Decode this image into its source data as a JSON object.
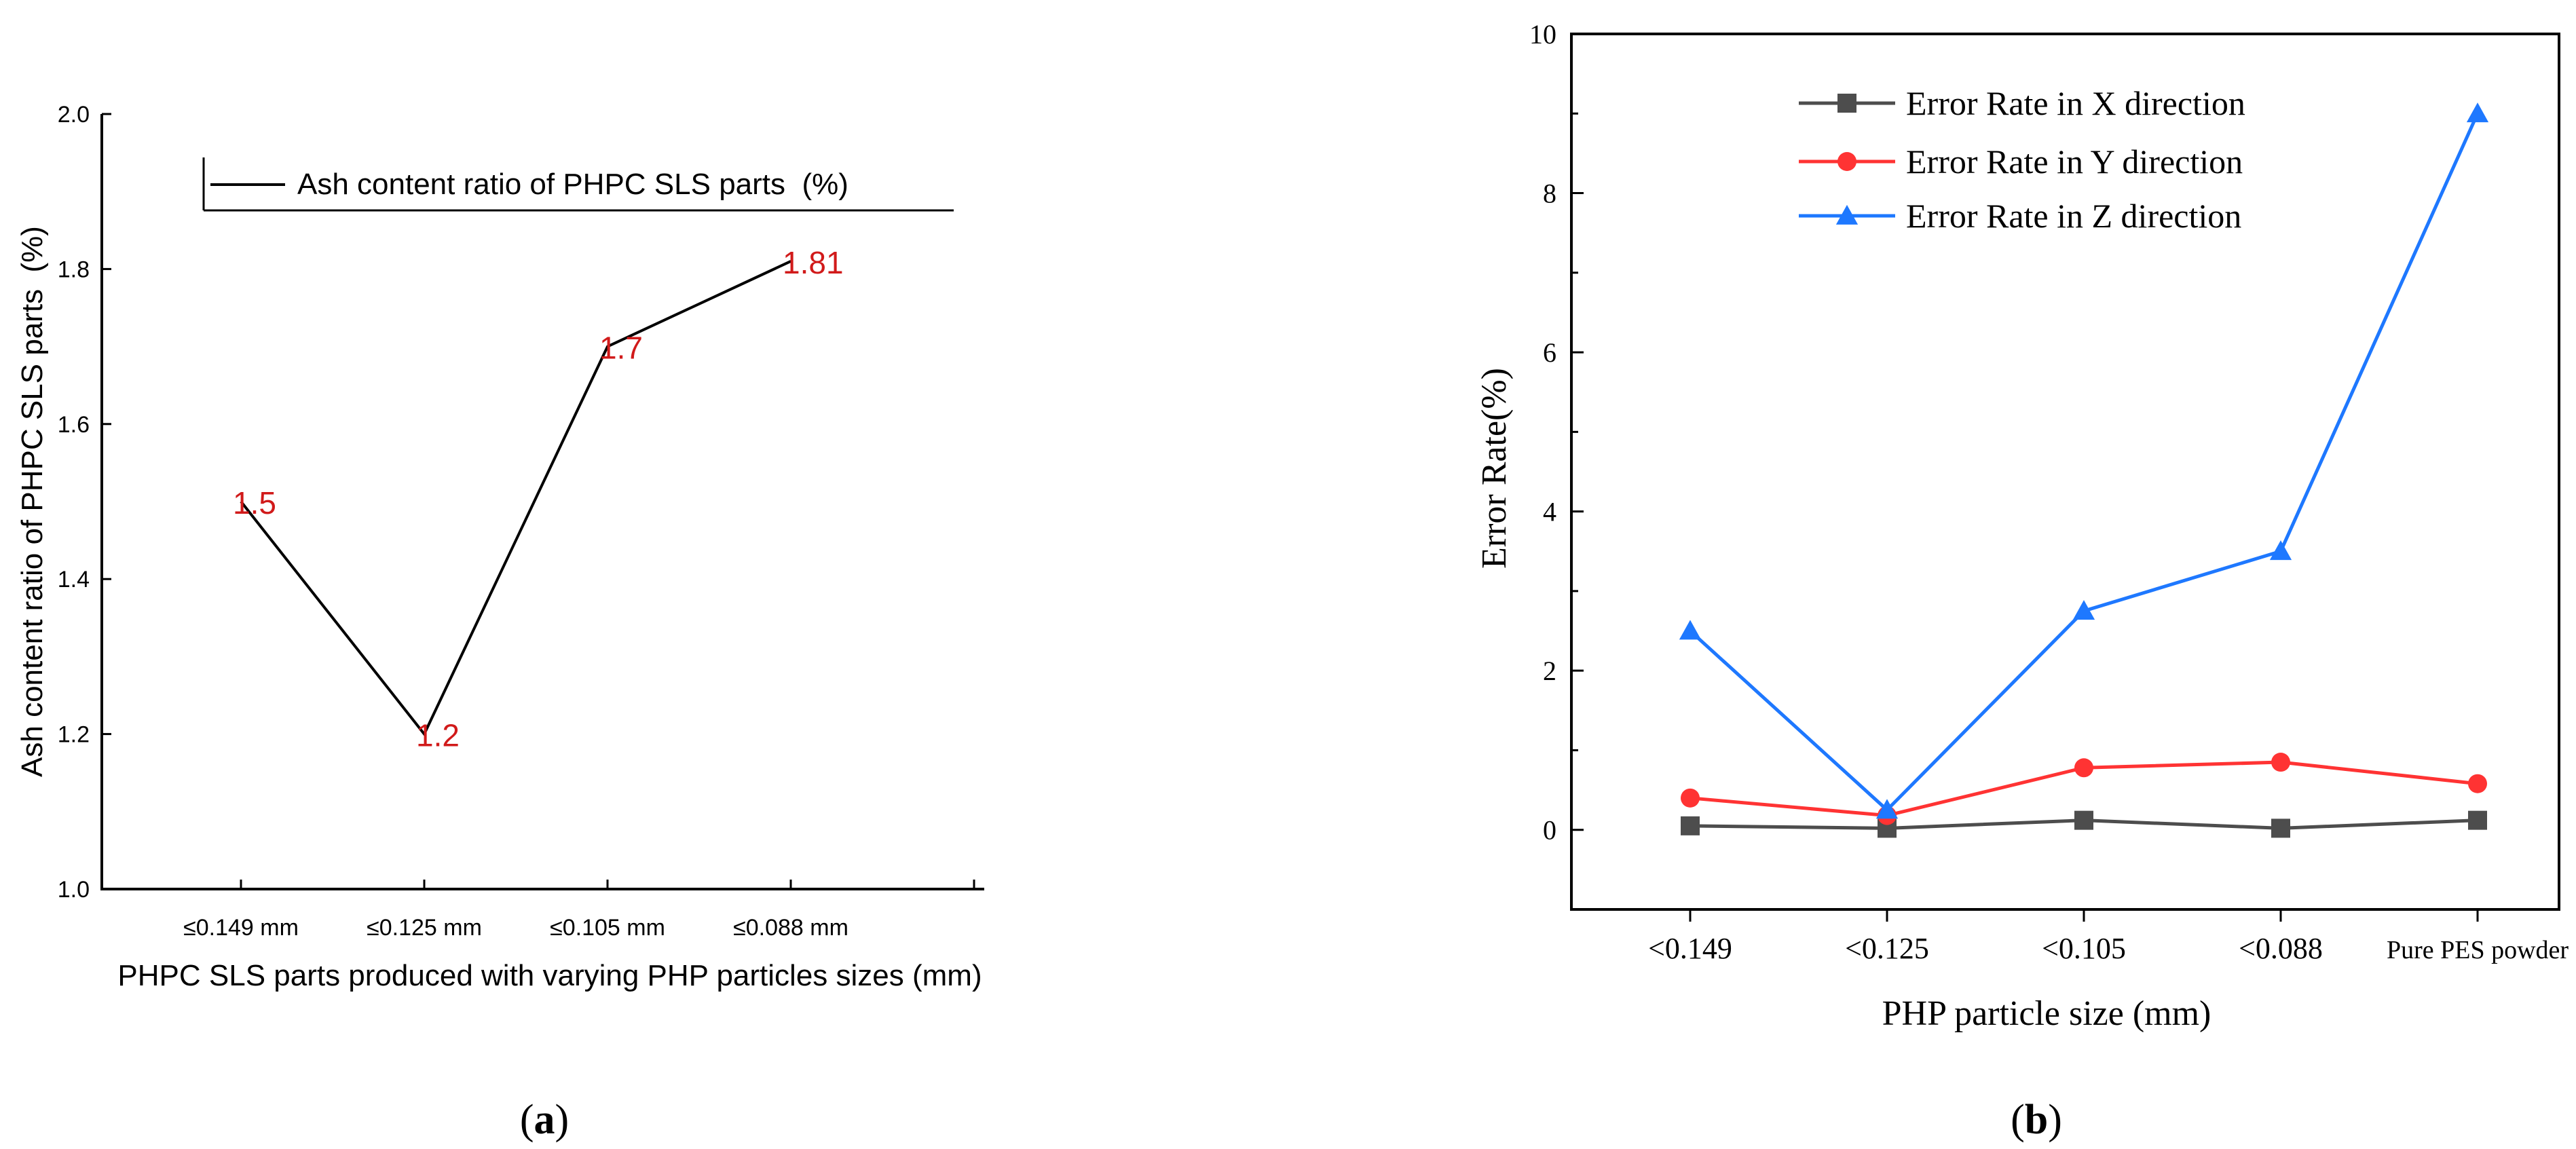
{
  "panels": {
    "a": {
      "label": "a"
    },
    "b": {
      "label": "b"
    }
  },
  "colors": {
    "axis": "#000000",
    "a_line": "#000000",
    "a_data_label": "#d11a1a",
    "x_series": "#4d4d4d",
    "y_series": "#ff3333",
    "z_series": "#1e78ff"
  },
  "chart_data": [
    {
      "id": "a",
      "type": "line",
      "title": "",
      "xlabel": "PHPC SLS parts produced with varying PHP particles sizes (mm)",
      "ylabel": "Ash content ratio of PHPC SLS parts  (%)",
      "categories": [
        "≤0.149 mm",
        "≤0.125 mm",
        "≤0.105 mm",
        "≤0.088 mm"
      ],
      "series": [
        {
          "name": "Ash content ratio of PHPC SLS parts  (%)",
          "values": [
            1.5,
            1.2,
            1.7,
            1.81
          ],
          "labels": [
            "1.5",
            "1.2",
            "1.7",
            "1.81"
          ]
        }
      ],
      "ylim": [
        1.0,
        2.0
      ],
      "yticks": [
        1.0,
        1.2,
        1.4,
        1.6,
        1.8,
        2.0
      ],
      "ytick_labels": [
        "1.0",
        "1.2",
        "1.4",
        "1.6",
        "1.8",
        "2.0"
      ],
      "legend_position": "top-left",
      "grid": false
    },
    {
      "id": "b",
      "type": "line",
      "title": "",
      "xlabel": "PHP particle size (mm)",
      "ylabel": "Error Rate(%)",
      "categories": [
        "<0.149",
        "<0.125",
        "<0.105",
        "<0.088",
        "Pure PES powder"
      ],
      "series": [
        {
          "name": "Error Rate in X direction",
          "marker": "square",
          "values": [
            0.05,
            0.02,
            0.12,
            0.02,
            0.12
          ]
        },
        {
          "name": "Error Rate in Y direction",
          "marker": "circle",
          "values": [
            0.4,
            0.18,
            0.78,
            0.85,
            0.58
          ]
        },
        {
          "name": "Error Rate in Z direction",
          "marker": "triangle",
          "values": [
            2.5,
            0.25,
            2.75,
            3.5,
            9.0
          ]
        }
      ],
      "ylim": [
        -1,
        10
      ],
      "yticks": [
        0,
        2,
        4,
        6,
        8,
        10
      ],
      "ytick_labels": [
        "0",
        "2",
        "4",
        "6",
        "8",
        "10"
      ],
      "legend_position": "top-left",
      "grid": false
    }
  ]
}
